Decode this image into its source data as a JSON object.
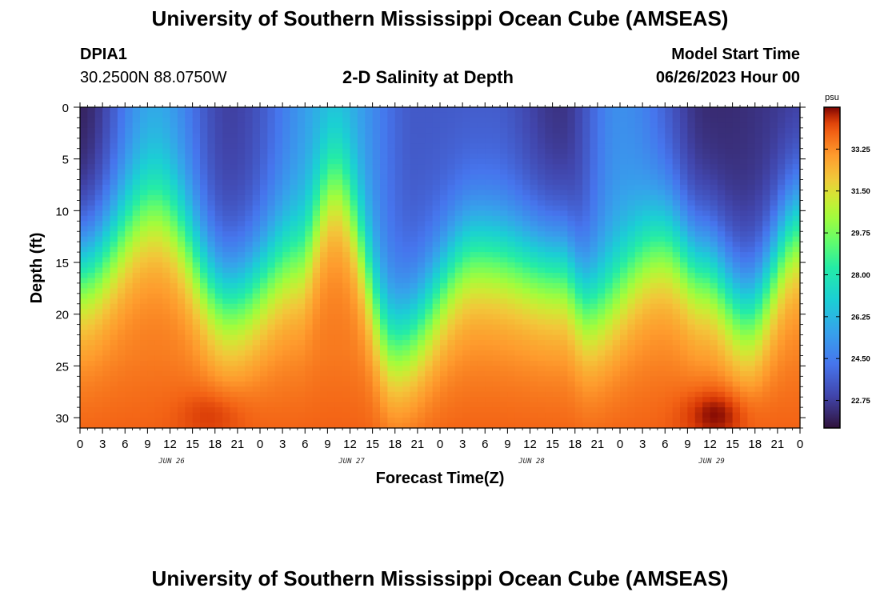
{
  "header": {
    "title": "University of Southern Mississippi Ocean Cube (AMSEAS)",
    "station_id": "DPIA1",
    "station_coords": "30.2500N  88.0750W",
    "plot_title": "2-D Salinity at Depth",
    "model_start_label": "Model Start Time",
    "model_start_value": "06/26/2023 Hour 00"
  },
  "footer": {
    "title": "University of Southern Mississippi Ocean Cube (AMSEAS)"
  },
  "chart_data": {
    "type": "heatmap",
    "title": "2-D Salinity at Depth",
    "xlabel": "Forecast Time(Z)",
    "ylabel": "Depth (ft)",
    "x_range_hours": [
      0,
      96
    ],
    "x_tick_step_hours": 3,
    "x_tick_labels": [
      "0",
      "3",
      "6",
      "9",
      "12",
      "15",
      "18",
      "21",
      "0",
      "3",
      "6",
      "9",
      "12",
      "15",
      "18",
      "21",
      "0",
      "3",
      "6",
      "9",
      "12",
      "15",
      "18",
      "21",
      "0",
      "3",
      "6",
      "9",
      "12",
      "15",
      "18",
      "21",
      "0"
    ],
    "day_labels": [
      {
        "label": "JUN 26",
        "hour": 12
      },
      {
        "label": "JUN 27",
        "hour": 36
      },
      {
        "label": "JUN 28",
        "hour": 60
      },
      {
        "label": "JUN 29",
        "hour": 84
      }
    ],
    "y_range_ft": [
      0,
      31
    ],
    "y_ticks": [
      0,
      5,
      10,
      15,
      20,
      25,
      30
    ],
    "y_inverted": true,
    "colorbar": {
      "unit": "psu",
      "min": 21.6,
      "max": 35.0,
      "tick_values": [
        22.75,
        24.5,
        26.25,
        28.0,
        29.75,
        31.5,
        33.25
      ],
      "tick_labels": [
        "22.75",
        "24.50",
        "26.25",
        "28.00",
        "29.75",
        "31.50",
        "33.25"
      ]
    },
    "halocline_depth_ft": [
      {
        "hour": 0,
        "depth": 15.5
      },
      {
        "hour": 10,
        "depth": 9.8
      },
      {
        "hour": 20,
        "depth": 18.5
      },
      {
        "hour": 29,
        "depth": 14.5
      },
      {
        "hour": 34,
        "depth": 7.5
      },
      {
        "hour": 42,
        "depth": 22.5
      },
      {
        "hour": 53,
        "depth": 14.0
      },
      {
        "hour": 64,
        "depth": 15.5
      },
      {
        "hour": 68,
        "depth": 19.0
      },
      {
        "hour": 78,
        "depth": 13.0
      },
      {
        "hour": 83,
        "depth": 15.5
      },
      {
        "hour": 89,
        "depth": 19.5
      },
      {
        "hour": 96,
        "depth": 11.5
      }
    ],
    "surface_salinity_psu": [
      {
        "hour": 0,
        "value": 22.0
      },
      {
        "hour": 10,
        "value": 25.5
      },
      {
        "hour": 20,
        "value": 22.8
      },
      {
        "hour": 34,
        "value": 26.0
      },
      {
        "hour": 45,
        "value": 23.5
      },
      {
        "hour": 55,
        "value": 23.5
      },
      {
        "hour": 64,
        "value": 22.4
      },
      {
        "hour": 72,
        "value": 25.0
      },
      {
        "hour": 84,
        "value": 22.2
      },
      {
        "hour": 96,
        "value": 22.6
      }
    ],
    "bottom_salinity_psu": 33.6,
    "max_salinity_spots": [
      {
        "hour": 18,
        "depth": 29.5,
        "value": 34.3
      },
      {
        "hour": 85,
        "depth": 29.5,
        "value": 34.8
      }
    ]
  }
}
